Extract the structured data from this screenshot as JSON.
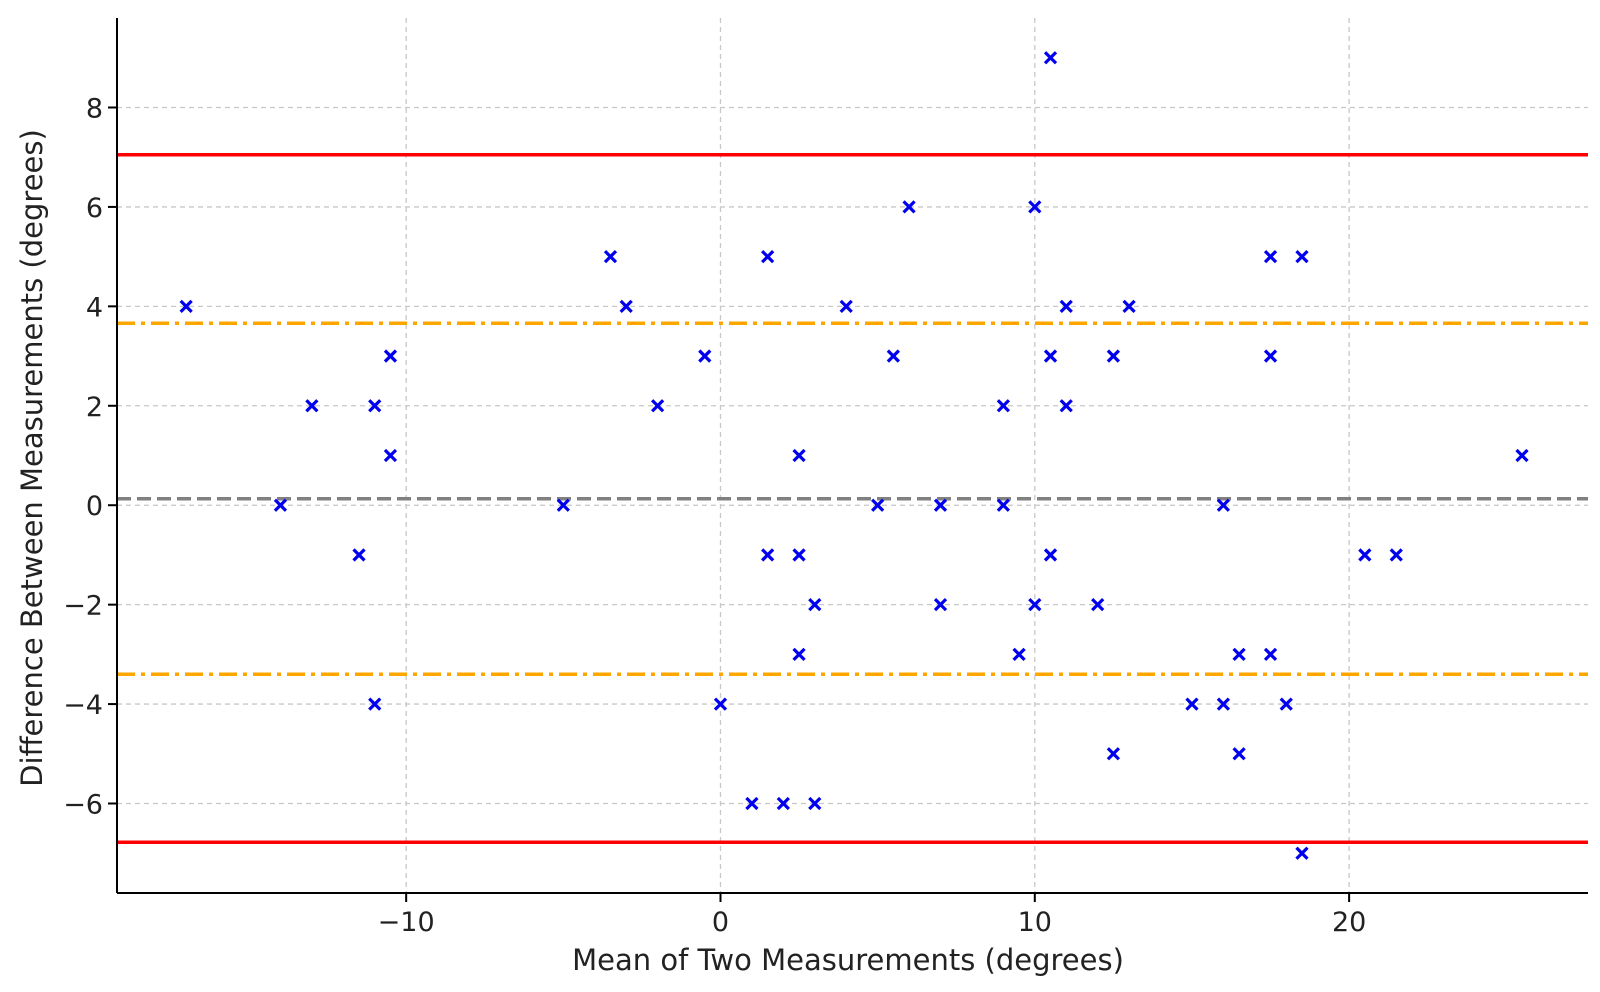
{
  "chart_data": {
    "type": "scatter",
    "title": "",
    "xlabel": "Mean of Two Measurements (degrees)",
    "ylabel": "Difference Between Measurements (degrees)",
    "xlim": [
      -19.2,
      27.6
    ],
    "ylim": [
      -7.8,
      9.8
    ],
    "grid": true,
    "legend": "none",
    "x_ticks": [
      {
        "value": -10,
        "label": "−10"
      },
      {
        "value": 0,
        "label": "0"
      },
      {
        "value": 10,
        "label": "10"
      },
      {
        "value": 20,
        "label": "20"
      }
    ],
    "y_ticks": [
      {
        "value": -6,
        "label": "−6"
      },
      {
        "value": -4,
        "label": "−4"
      },
      {
        "value": -2,
        "label": "−2"
      },
      {
        "value": 0,
        "label": "0"
      },
      {
        "value": 2,
        "label": "2"
      },
      {
        "value": 4,
        "label": "4"
      },
      {
        "value": 6,
        "label": "6"
      },
      {
        "value": 8,
        "label": "8"
      }
    ],
    "reference_lines": [
      {
        "kind": "mean-difference",
        "y": 0.13,
        "color": "#808080",
        "style": "dashed"
      },
      {
        "kind": "upper-limit-of-agreement",
        "y": 7.05,
        "color": "#ff0000",
        "style": "solid"
      },
      {
        "kind": "lower-limit-of-agreement",
        "y": -6.78,
        "color": "#ff0000",
        "style": "solid"
      },
      {
        "kind": "upper-inner-limit",
        "y": 3.66,
        "color": "#ffa500",
        "style": "dashdot"
      },
      {
        "kind": "lower-inner-limit",
        "y": -3.4,
        "color": "#ffa500",
        "style": "dashdot"
      }
    ],
    "marker": {
      "shape": "x",
      "color": "#0000ee"
    },
    "points": [
      {
        "x": -17,
        "y": 4
      },
      {
        "x": -14,
        "y": 0
      },
      {
        "x": -13,
        "y": 2
      },
      {
        "x": -11.5,
        "y": -1
      },
      {
        "x": -11,
        "y": 2
      },
      {
        "x": -11,
        "y": -4
      },
      {
        "x": -10.5,
        "y": 3
      },
      {
        "x": -10.5,
        "y": 1
      },
      {
        "x": -5,
        "y": 0
      },
      {
        "x": -3.5,
        "y": 5
      },
      {
        "x": -3,
        "y": 4
      },
      {
        "x": -2,
        "y": 2
      },
      {
        "x": -0.5,
        "y": 3
      },
      {
        "x": 0,
        "y": -4
      },
      {
        "x": 1,
        "y": -6
      },
      {
        "x": 1.5,
        "y": 5
      },
      {
        "x": 1.5,
        "y": -1
      },
      {
        "x": 2,
        "y": -6
      },
      {
        "x": 2.5,
        "y": 1
      },
      {
        "x": 2.5,
        "y": -1
      },
      {
        "x": 2.5,
        "y": -3
      },
      {
        "x": 3,
        "y": -2
      },
      {
        "x": 3,
        "y": -6
      },
      {
        "x": 4,
        "y": 4
      },
      {
        "x": 5,
        "y": 0
      },
      {
        "x": 5.5,
        "y": 3
      },
      {
        "x": 6,
        "y": 6
      },
      {
        "x": 7,
        "y": 0
      },
      {
        "x": 7,
        "y": -2
      },
      {
        "x": 9,
        "y": 2
      },
      {
        "x": 9,
        "y": 0
      },
      {
        "x": 9.5,
        "y": -3
      },
      {
        "x": 10,
        "y": 6
      },
      {
        "x": 10,
        "y": -2
      },
      {
        "x": 10.5,
        "y": 9
      },
      {
        "x": 10.5,
        "y": 3
      },
      {
        "x": 10.5,
        "y": -1
      },
      {
        "x": 11,
        "y": 4
      },
      {
        "x": 11,
        "y": 2
      },
      {
        "x": 12,
        "y": -2
      },
      {
        "x": 12.5,
        "y": 3
      },
      {
        "x": 12.5,
        "y": -5
      },
      {
        "x": 13,
        "y": 4
      },
      {
        "x": 15,
        "y": -4
      },
      {
        "x": 16,
        "y": 0
      },
      {
        "x": 16,
        "y": -4
      },
      {
        "x": 16.5,
        "y": -3
      },
      {
        "x": 16.5,
        "y": -5
      },
      {
        "x": 17.5,
        "y": 5
      },
      {
        "x": 17.5,
        "y": 3
      },
      {
        "x": 17.5,
        "y": -3
      },
      {
        "x": 18,
        "y": -4
      },
      {
        "x": 18.5,
        "y": 5
      },
      {
        "x": 18.5,
        "y": -7
      },
      {
        "x": 20.5,
        "y": -1
      },
      {
        "x": 21.5,
        "y": -1
      },
      {
        "x": 25.5,
        "y": 1
      }
    ]
  }
}
